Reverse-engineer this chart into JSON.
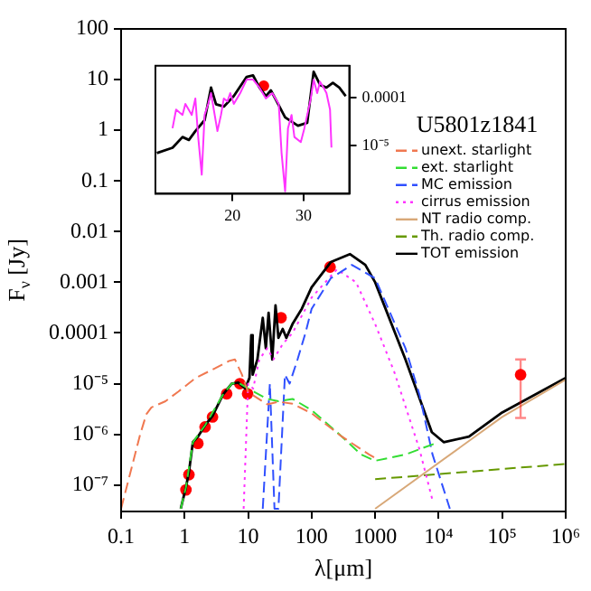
{
  "chart_data": [
    {
      "type": "line",
      "xlabel": "λ[μm]",
      "ylabel": "F$_{ν}$ [Jy]",
      "legend_title": "U5801z1841",
      "legend": "top right",
      "log": "xy",
      "xlim": [
        0.1,
        1000000
      ],
      "xticks": [
        0.1,
        1,
        10,
        100,
        1000,
        {
          "value": 10000,
          "label": "10⁴"
        },
        {
          "value": 100000,
          "label": "10⁵"
        },
        {
          "value": 1000000,
          "label": "10⁶"
        }
      ],
      "ylim": [
        3e-08,
        100
      ],
      "yticks": [
        100,
        10,
        1,
        0.1,
        0.01,
        0.001,
        0.0001,
        {
          "value": 1e-05,
          "label": "10⁻⁵"
        },
        {
          "value": 1e-06,
          "label": "10⁻⁶"
        },
        {
          "value": 1e-07,
          "label": "10⁻⁷"
        }
      ],
      "series": [
        {
          "name": "unext. starlight",
          "color": "#f07850",
          "line_style": "dashed",
          "x": [
            0.1,
            0.2,
            0.25,
            0.3,
            0.5,
            0.8,
            1.5,
            3,
            5,
            6.2,
            8,
            10,
            20,
            30,
            50,
            100,
            300,
            800,
            1000
          ],
          "values": [
            3.4e-08,
            1e-06,
            2.5e-06,
            3.4e-06,
            4.5e-06,
            7e-06,
            1.3e-05,
            2e-05,
            2.8e-05,
            3e-05,
            1.5e-05,
            6.8e-06,
            3.9e-06,
            4.4e-06,
            4e-06,
            2.6e-06,
            9e-07,
            4e-07,
            3.4e-07
          ]
        },
        {
          "name": "ext. starlight",
          "color": "#33dd33",
          "line_style": "dashed",
          "x": [
            0.87,
            1.05,
            1.35,
            2.1,
            4,
            5.5,
            7,
            10,
            20,
            30,
            50,
            100,
            300,
            600,
            1000,
            3000,
            10000
          ],
          "values": [
            3.4e-08,
            9e-08,
            7e-07,
            1.5e-06,
            6e-06,
            1e-05,
            1.05e-05,
            8e-06,
            5e-06,
            4.5e-06,
            5e-06,
            3e-06,
            9e-07,
            4e-07,
            3e-07,
            4e-07,
            7e-07
          ]
        },
        {
          "name": "MC emission",
          "color": "#3050ff",
          "line_style": "dashed",
          "x": [
            17,
            22,
            26,
            30,
            38,
            45,
            60,
            80,
            100,
            200,
            430,
            1000,
            3000,
            5000,
            8000,
            15000
          ],
          "values": [
            3.4e-08,
            1e-05,
            3.4e-08,
            3.4e-08,
            1.5e-05,
            1e-05,
            3e-05,
            0.0001,
            0.0003,
            0.0012,
            0.0022,
            0.0012,
            5e-05,
            6e-06,
            4e-07,
            3.4e-08
          ]
        },
        {
          "name": "cirrus emission",
          "color": "#ff33ff",
          "line_style": "dotted",
          "x": [
            8.5,
            10,
            12,
            15,
            20,
            25,
            35,
            50,
            100,
            250,
            500,
            1000,
            2000,
            5000,
            8000
          ],
          "values": [
            3.4e-08,
            1e-05,
            8e-06,
            3e-05,
            5e-05,
            3e-05,
            6e-05,
            0.0001,
            0.0005,
            0.0018,
            0.001,
            0.00015,
            1.7e-05,
            5e-07,
            5e-08
          ]
        },
        {
          "name": "NT radio comp.",
          "color": "#d8a878",
          "x": [
            1000,
            100000,
            1000000
          ],
          "values": [
            3.4e-08,
            2.2e-06,
            1.2e-05
          ]
        },
        {
          "name": "Th. radio comp.",
          "color": "#669900",
          "line_style": "dashed",
          "x": [
            1000,
            1000000
          ],
          "values": [
            1.3e-07,
            2.6e-07
          ]
        },
        {
          "name": "TOT emission",
          "color": "#000000",
          "x": [
            0.87,
            1.05,
            1.17,
            1.35,
            1.62,
            2.1,
            2.75,
            4,
            5.5,
            7,
            9,
            10.5,
            11.2,
            11.8,
            14,
            17,
            19,
            21,
            24,
            27,
            30,
            35,
            40,
            50,
            70,
            100,
            200,
            400,
            700,
            1000,
            3000,
            7800,
            12000,
            30000,
            100000,
            1000000
          ],
          "values": [
            3.4e-08,
            9e-08,
            1.8e-07,
            7e-07,
            9e-07,
            1.5e-06,
            2.3e-06,
            6e-06,
            1e-05,
            1.05e-05,
            8e-06,
            1.3e-05,
            9e-05,
            1.5e-05,
            3e-05,
            0.0002,
            5e-05,
            0.00025,
            3e-05,
            0.00035,
            8e-05,
            0.00012,
            8e-05,
            0.00015,
            0.0003,
            0.0008,
            0.0025,
            0.0036,
            0.0022,
            0.001,
            3e-05,
            1.1e-06,
            7e-07,
            9e-07,
            2.7e-06,
            1.3e-05
          ]
        },
        {
          "type": "scatter",
          "marker": "circle",
          "color": "#ff0000",
          "x": [
            1.05,
            1.17,
            1.62,
            2.1,
            2.75,
            4.6,
            7.4,
            9.8,
            33,
            195,
            195000
          ],
          "values": [
            8e-08,
            1.6e-07,
            6.6e-07,
            1.4e-06,
            2.2e-06,
            6.3e-06,
            1e-05,
            6.3e-06,
            0.0002,
            0.002,
            1.5e-05
          ],
          "errors": [
            null,
            null,
            null,
            null,
            null,
            null,
            null,
            null,
            null,
            null,
            [
              2.1e-06,
              3e-05
            ]
          ]
        }
      ]
    },
    {
      "type": "line",
      "log": "y2",
      "xlim": [
        9.2,
        36.4
      ],
      "xticks": [
        20,
        30
      ],
      "y2lim": [
        9.5e-07,
        0.00048
      ],
      "y2ticks": [
        0.0001,
        {
          "value": 1e-05,
          "label": "10⁻⁵"
        }
      ],
      "series": [
        {
          "axis": "y2",
          "color": "#ff33ff",
          "x": [
            11.6,
            12.1,
            13,
            13.4,
            14.3,
            14.8,
            15.2,
            15.7,
            16.1,
            16.6,
            17,
            17.9,
            18.4,
            18.8,
            19.3,
            19.7,
            20.2,
            21.1,
            22,
            22.9,
            23.8,
            24.7,
            25.6,
            26.5,
            26.9,
            27.4,
            27.8,
            28.3,
            28.7,
            29.6,
            30.1,
            31,
            31.4,
            31.9,
            32.3,
            32.8,
            33.2,
            33.7,
            33.9
          ],
          "values": [
            2.3e-05,
            5.7e-05,
            4.4e-05,
            7.5e-05,
            4.4e-05,
            9.8e-05,
            1.5e-05,
            2.4e-06,
            4.4e-05,
            7.5e-05,
            0.000127,
            2e-05,
            4.4e-05,
            9.8e-05,
            8.5e-05,
            0.000127,
            7.5e-05,
            0.000127,
            0.000245,
            0.000245,
            0.000166,
            9.8e-05,
            0.000127,
            7.5e-05,
            6.9e-06,
            1.07e-06,
            2.3e-05,
            4.4e-05,
            1.5e-05,
            1.17e-05,
            2.3e-05,
            9.8e-05,
            0.000245,
            0.000127,
            0.00022,
            0.000166,
            0.000127,
            5.7e-05,
            9e-06
          ]
        },
        {
          "axis": "y2",
          "color": "#000000",
          "x": [
            9.4,
            11.6,
            13,
            13.9,
            14.8,
            16.1,
            17,
            17.7,
            18.8,
            20.2,
            22,
            22.9,
            23.8,
            24.7,
            25.4,
            26,
            27.4,
            29.2,
            30.5,
            31.4,
            32.3,
            33.2,
            34.1,
            35,
            35.9
          ],
          "values": [
            6.9e-06,
            8.9e-06,
            1.5e-05,
            1.3e-05,
            2e-05,
            3.4e-05,
            0.000166,
            7.4e-05,
            6.6e-05,
            0.00011,
            0.00028,
            0.0003,
            0.000166,
            0.00011,
            0.000145,
            9.8e-05,
            3.9e-05,
            2.6e-05,
            3e-05,
            0.00036,
            0.00019,
            0.000166,
            0.00021,
            0.000166,
            0.00011
          ]
        },
        {
          "type": "scatter",
          "axis": "y2",
          "marker": "circle",
          "color": "#ff0000",
          "x": [
            24.4
          ],
          "values": [
            0.00018
          ]
        }
      ]
    }
  ]
}
